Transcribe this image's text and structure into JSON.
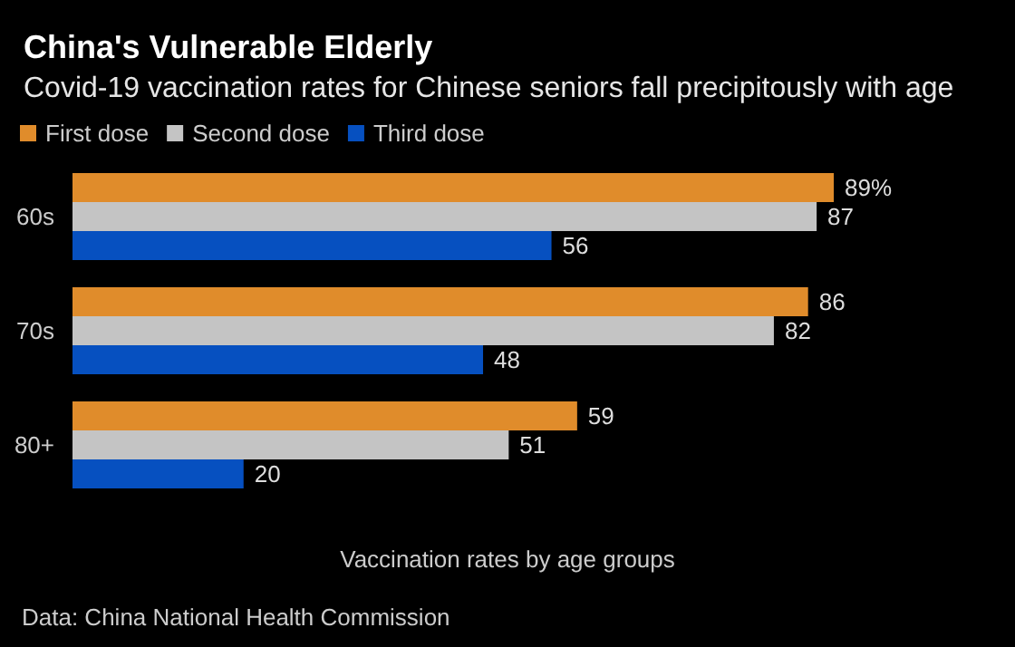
{
  "chart_data": {
    "type": "bar",
    "orientation": "horizontal",
    "title": "China's Vulnerable Elderly",
    "subtitle": "Covid-19 vaccination rates for Chinese seniors fall precipitously with age",
    "xlabel": "Vaccination rates by age groups",
    "annotations": [
      "Data: China National Health Commission"
    ],
    "categories": [
      "60s",
      "70s",
      "80+"
    ],
    "series": [
      {
        "name": "First dose",
        "color": "#e08c2b",
        "values": [
          89,
          86,
          59
        ],
        "value_labels": [
          "89%",
          "86",
          "59"
        ]
      },
      {
        "name": "Second dose",
        "color": "#c4c4c4",
        "values": [
          87,
          82,
          51
        ],
        "value_labels": [
          "87",
          "82",
          "51"
        ]
      },
      {
        "name": "Third dose",
        "color": "#0650c0",
        "values": [
          56,
          48,
          20
        ],
        "value_labels": [
          "56",
          "48",
          "20"
        ]
      }
    ],
    "legend": "top left"
  }
}
